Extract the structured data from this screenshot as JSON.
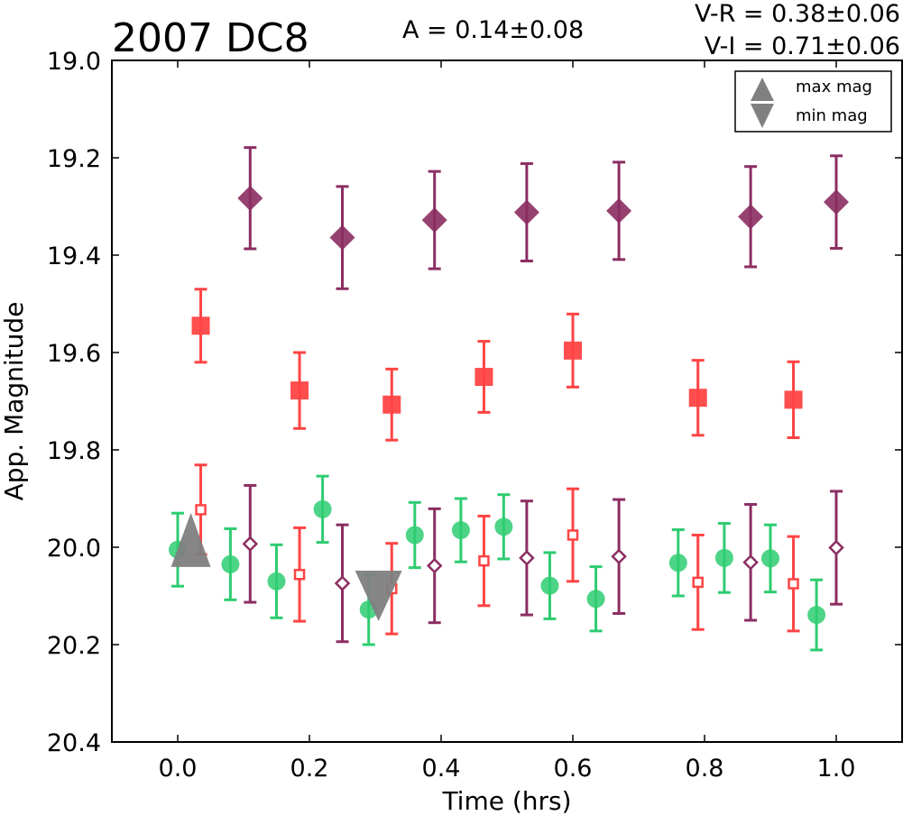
{
  "chart_data": {
    "type": "scatter",
    "title": "2007 DC8",
    "annotations": {
      "amplitude": "A  = 0.14±0.08",
      "v_r": "V-R = 0.38±0.06",
      "v_i": "V-I  = 0.71±0.06"
    },
    "xlabel": "Time (hrs)",
    "ylabel": "App. Magnitude",
    "xlim": [
      -0.1,
      1.1
    ],
    "ylim": [
      20.4,
      19.0
    ],
    "y_inverted": true,
    "grid": false,
    "x_ticks": [
      "0.0",
      "0.2",
      "0.4",
      "0.6",
      "0.8",
      "1.0"
    ],
    "y_ticks": [
      "19.0",
      "19.2",
      "19.4",
      "19.6",
      "19.8",
      "20.0",
      "20.2",
      "20.4"
    ],
    "legend": {
      "placement": "top-right",
      "entries": [
        {
          "label": "max mag",
          "marker": "triangle-up",
          "color": "#808080"
        },
        {
          "label": "min mag",
          "marker": "triangle-down",
          "color": "#808080"
        }
      ]
    },
    "series": [
      {
        "marker": "circle",
        "color": "#2ecc71",
        "filled": true,
        "points": [
          {
            "x": 0.0,
            "y": 20.005,
            "err": 0.075
          },
          {
            "x": 0.08,
            "y": 20.035,
            "err": 0.073
          },
          {
            "x": 0.15,
            "y": 20.07,
            "err": 0.075
          },
          {
            "x": 0.22,
            "y": 19.922,
            "err": 0.068
          },
          {
            "x": 0.29,
            "y": 20.128,
            "err": 0.072
          },
          {
            "x": 0.36,
            "y": 19.975,
            "err": 0.067
          },
          {
            "x": 0.43,
            "y": 19.965,
            "err": 0.065
          },
          {
            "x": 0.495,
            "y": 19.958,
            "err": 0.066
          },
          {
            "x": 0.565,
            "y": 20.079,
            "err": 0.068
          },
          {
            "x": 0.635,
            "y": 20.106,
            "err": 0.066
          },
          {
            "x": 0.76,
            "y": 20.032,
            "err": 0.068
          },
          {
            "x": 0.83,
            "y": 20.022,
            "err": 0.071
          },
          {
            "x": 0.9,
            "y": 20.023,
            "err": 0.069
          },
          {
            "x": 0.97,
            "y": 20.139,
            "err": 0.072
          }
        ]
      },
      {
        "marker": "square",
        "color": "#ff4444",
        "filled": true,
        "points": [
          {
            "x": 0.035,
            "y": 19.545,
            "err": 0.075
          },
          {
            "x": 0.185,
            "y": 19.678,
            "err": 0.078
          },
          {
            "x": 0.325,
            "y": 19.707,
            "err": 0.073
          },
          {
            "x": 0.465,
            "y": 19.65,
            "err": 0.073
          },
          {
            "x": 0.6,
            "y": 19.596,
            "err": 0.075
          },
          {
            "x": 0.79,
            "y": 19.693,
            "err": 0.077
          },
          {
            "x": 0.935,
            "y": 19.697,
            "err": 0.078
          }
        ]
      },
      {
        "marker": "square",
        "color": "#ff4444",
        "filled": false,
        "points": [
          {
            "x": 0.035,
            "y": 19.923,
            "err": 0.092
          },
          {
            "x": 0.185,
            "y": 20.056,
            "err": 0.096
          },
          {
            "x": 0.325,
            "y": 20.085,
            "err": 0.093
          },
          {
            "x": 0.465,
            "y": 20.028,
            "err": 0.092
          },
          {
            "x": 0.6,
            "y": 19.975,
            "err": 0.095
          },
          {
            "x": 0.79,
            "y": 20.072,
            "err": 0.097
          },
          {
            "x": 0.935,
            "y": 20.075,
            "err": 0.097
          }
        ]
      },
      {
        "marker": "diamond",
        "color": "#8b2e62",
        "filled": true,
        "points": [
          {
            "x": 0.11,
            "y": 19.283,
            "err": 0.104
          },
          {
            "x": 0.25,
            "y": 19.364,
            "err": 0.105
          },
          {
            "x": 0.39,
            "y": 19.328,
            "err": 0.1
          },
          {
            "x": 0.53,
            "y": 19.312,
            "err": 0.1
          },
          {
            "x": 0.67,
            "y": 19.309,
            "err": 0.1
          },
          {
            "x": 0.87,
            "y": 19.321,
            "err": 0.103
          },
          {
            "x": 1.0,
            "y": 19.291,
            "err": 0.095
          }
        ]
      },
      {
        "marker": "diamond",
        "color": "#8b2e62",
        "filled": false,
        "points": [
          {
            "x": 0.11,
            "y": 19.993,
            "err": 0.12
          },
          {
            "x": 0.25,
            "y": 20.074,
            "err": 0.12
          },
          {
            "x": 0.39,
            "y": 20.038,
            "err": 0.117
          },
          {
            "x": 0.53,
            "y": 20.022,
            "err": 0.117
          },
          {
            "x": 0.67,
            "y": 20.019,
            "err": 0.117
          },
          {
            "x": 0.87,
            "y": 20.031,
            "err": 0.119
          },
          {
            "x": 1.0,
            "y": 20.001,
            "err": 0.116
          }
        ]
      }
    ],
    "extrema": [
      {
        "type": "max",
        "marker": "triangle-up",
        "color": "#808080",
        "x": 0.02,
        "y": 19.985
      },
      {
        "type": "min",
        "marker": "triangle-down",
        "color": "#808080",
        "x": 0.305,
        "y": 20.1
      }
    ]
  }
}
